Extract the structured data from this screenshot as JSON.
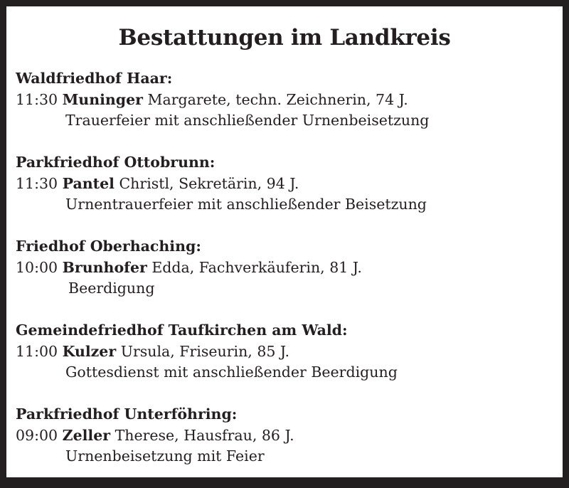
{
  "title": "Bestattungen im Landkreis",
  "sections": [
    {
      "cemetery": "Waldfriedhof Haar:",
      "time": "11:30",
      "surname": "Muninger",
      "details": "Margarete, techn. Zeichnerin, 74 J.",
      "ceremony": "Trauerfeier mit anschließender Urnenbeisetzung"
    },
    {
      "cemetery": "Parkfriedhof Ottobrunn:",
      "time": "11:30",
      "surname": "Pantel",
      "details": "Christl, Sekretärin, 94 J.",
      "ceremony": "Urnentrauerfeier mit anschließender Beisetzung"
    },
    {
      "cemetery": "Friedhof Oberhaching:",
      "time": "10:00",
      "surname": "Brunhofer",
      "details": "Edda, Fachverkäuferin, 81 J.",
      "ceremony": "Beerdigung"
    },
    {
      "cemetery": "Gemeindefriedhof Taufkirchen am Wald:",
      "time": "11:00",
      "surname": "Kulzer",
      "details": "Ursula, Friseurin, 85 J.",
      "ceremony": "Gottesdienst mit anschließender Beerdigung"
    },
    {
      "cemetery": "Parkfriedhof Unterföhring:",
      "time": "09:00",
      "surname": "Zeller",
      "details": "Therese, Hausfrau, 86 J.",
      "ceremony": "Urnenbeisetzung mit Feier"
    }
  ]
}
